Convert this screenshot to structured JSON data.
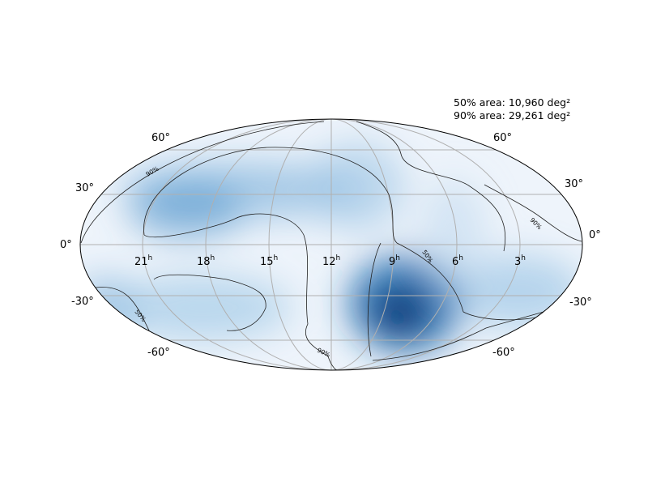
{
  "annotation": {
    "area_50": "50% area: 10,960 deg²",
    "area_90": "90% area: 29,261 deg²"
  },
  "projection": "mollweide",
  "colormap": "Blues",
  "grid": true,
  "ra_tick_labels": [
    "21",
    "18",
    "15",
    "12",
    "9",
    "6",
    "3"
  ],
  "ra_tick_unit": "h",
  "dec_tick_labels_left": [
    "60°",
    "30°",
    "0°",
    "-30°",
    "-60°"
  ],
  "dec_tick_labels_right": [
    "60°",
    "30°",
    "0°",
    "-30°",
    "-60°"
  ],
  "contour_labels": {
    "level_90": "90%",
    "level_50": "50%"
  },
  "probability_peaks": [
    {
      "ra_deg": 140,
      "dec_deg": -40,
      "weight": 1.0,
      "spread_deg": 18
    },
    {
      "ra_deg": 285,
      "dec_deg": 35,
      "weight": 0.55,
      "spread_deg": 20
    },
    {
      "ra_deg": 190,
      "dec_deg": 35,
      "weight": 0.35,
      "spread_deg": 22
    },
    {
      "ra_deg": 330,
      "dec_deg": -30,
      "weight": 0.35,
      "spread_deg": 25
    },
    {
      "ra_deg": 40,
      "dec_deg": -20,
      "weight": 0.3,
      "spread_deg": 22
    }
  ]
}
